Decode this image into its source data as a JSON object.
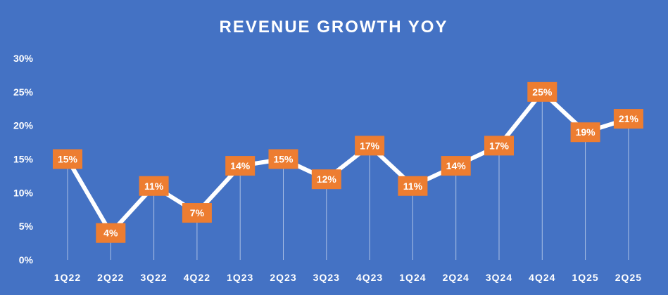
{
  "chart_data": {
    "type": "line",
    "title": "REVENUE GROWTH YOY",
    "categories": [
      "1Q22",
      "2Q22",
      "3Q22",
      "4Q22",
      "1Q23",
      "2Q23",
      "3Q23",
      "4Q23",
      "1Q24",
      "2Q24",
      "3Q24",
      "4Q24",
      "1Q25",
      "2Q25"
    ],
    "values": [
      15,
      4,
      11,
      7,
      14,
      15,
      12,
      17,
      11,
      14,
      17,
      25,
      19,
      21
    ],
    "data_labels": [
      "15%",
      "4%",
      "11%",
      "7%",
      "14%",
      "15%",
      "12%",
      "17%",
      "11%",
      "14%",
      "17%",
      "25%",
      "19%",
      "21%"
    ],
    "yticks": [
      "0%",
      "5%",
      "10%",
      "15%",
      "20%",
      "25%",
      "30%"
    ],
    "ylim": [
      0,
      30
    ],
    "grid": false,
    "legend": "none",
    "colors": {
      "background": "#4472c4",
      "line": "#ffffff",
      "label_box": "#ed7d31",
      "text": "#ffffff"
    }
  }
}
